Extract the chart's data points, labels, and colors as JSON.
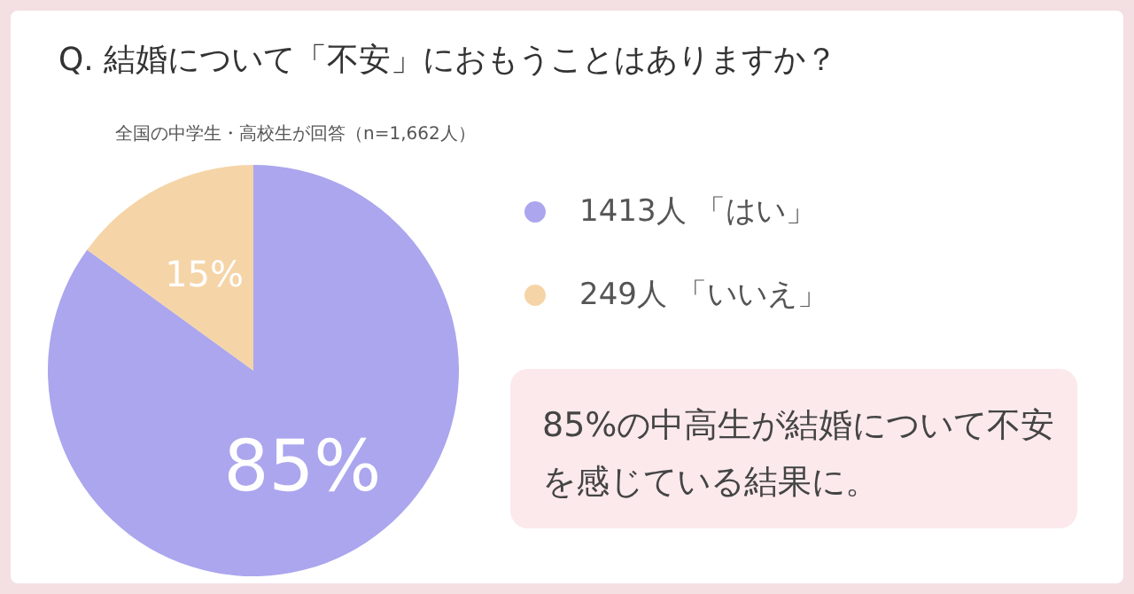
{
  "chart_data": {
    "type": "pie",
    "title": "Q. 結婚について「不安」におもうことはありますか？",
    "subtitle": "全国の中学生・高校生が回答（n=1,662人）",
    "categories": [
      "1413人 「はい」",
      "249人 「いいえ」"
    ],
    "values": [
      85,
      15
    ],
    "colors": [
      "#aba6ee",
      "#f5d4a7"
    ],
    "value_labels": [
      "85%",
      "15%"
    ],
    "legend": "right",
    "annotations": [
      "85%の中高生が結婚について不安を感じている結果に。"
    ]
  }
}
